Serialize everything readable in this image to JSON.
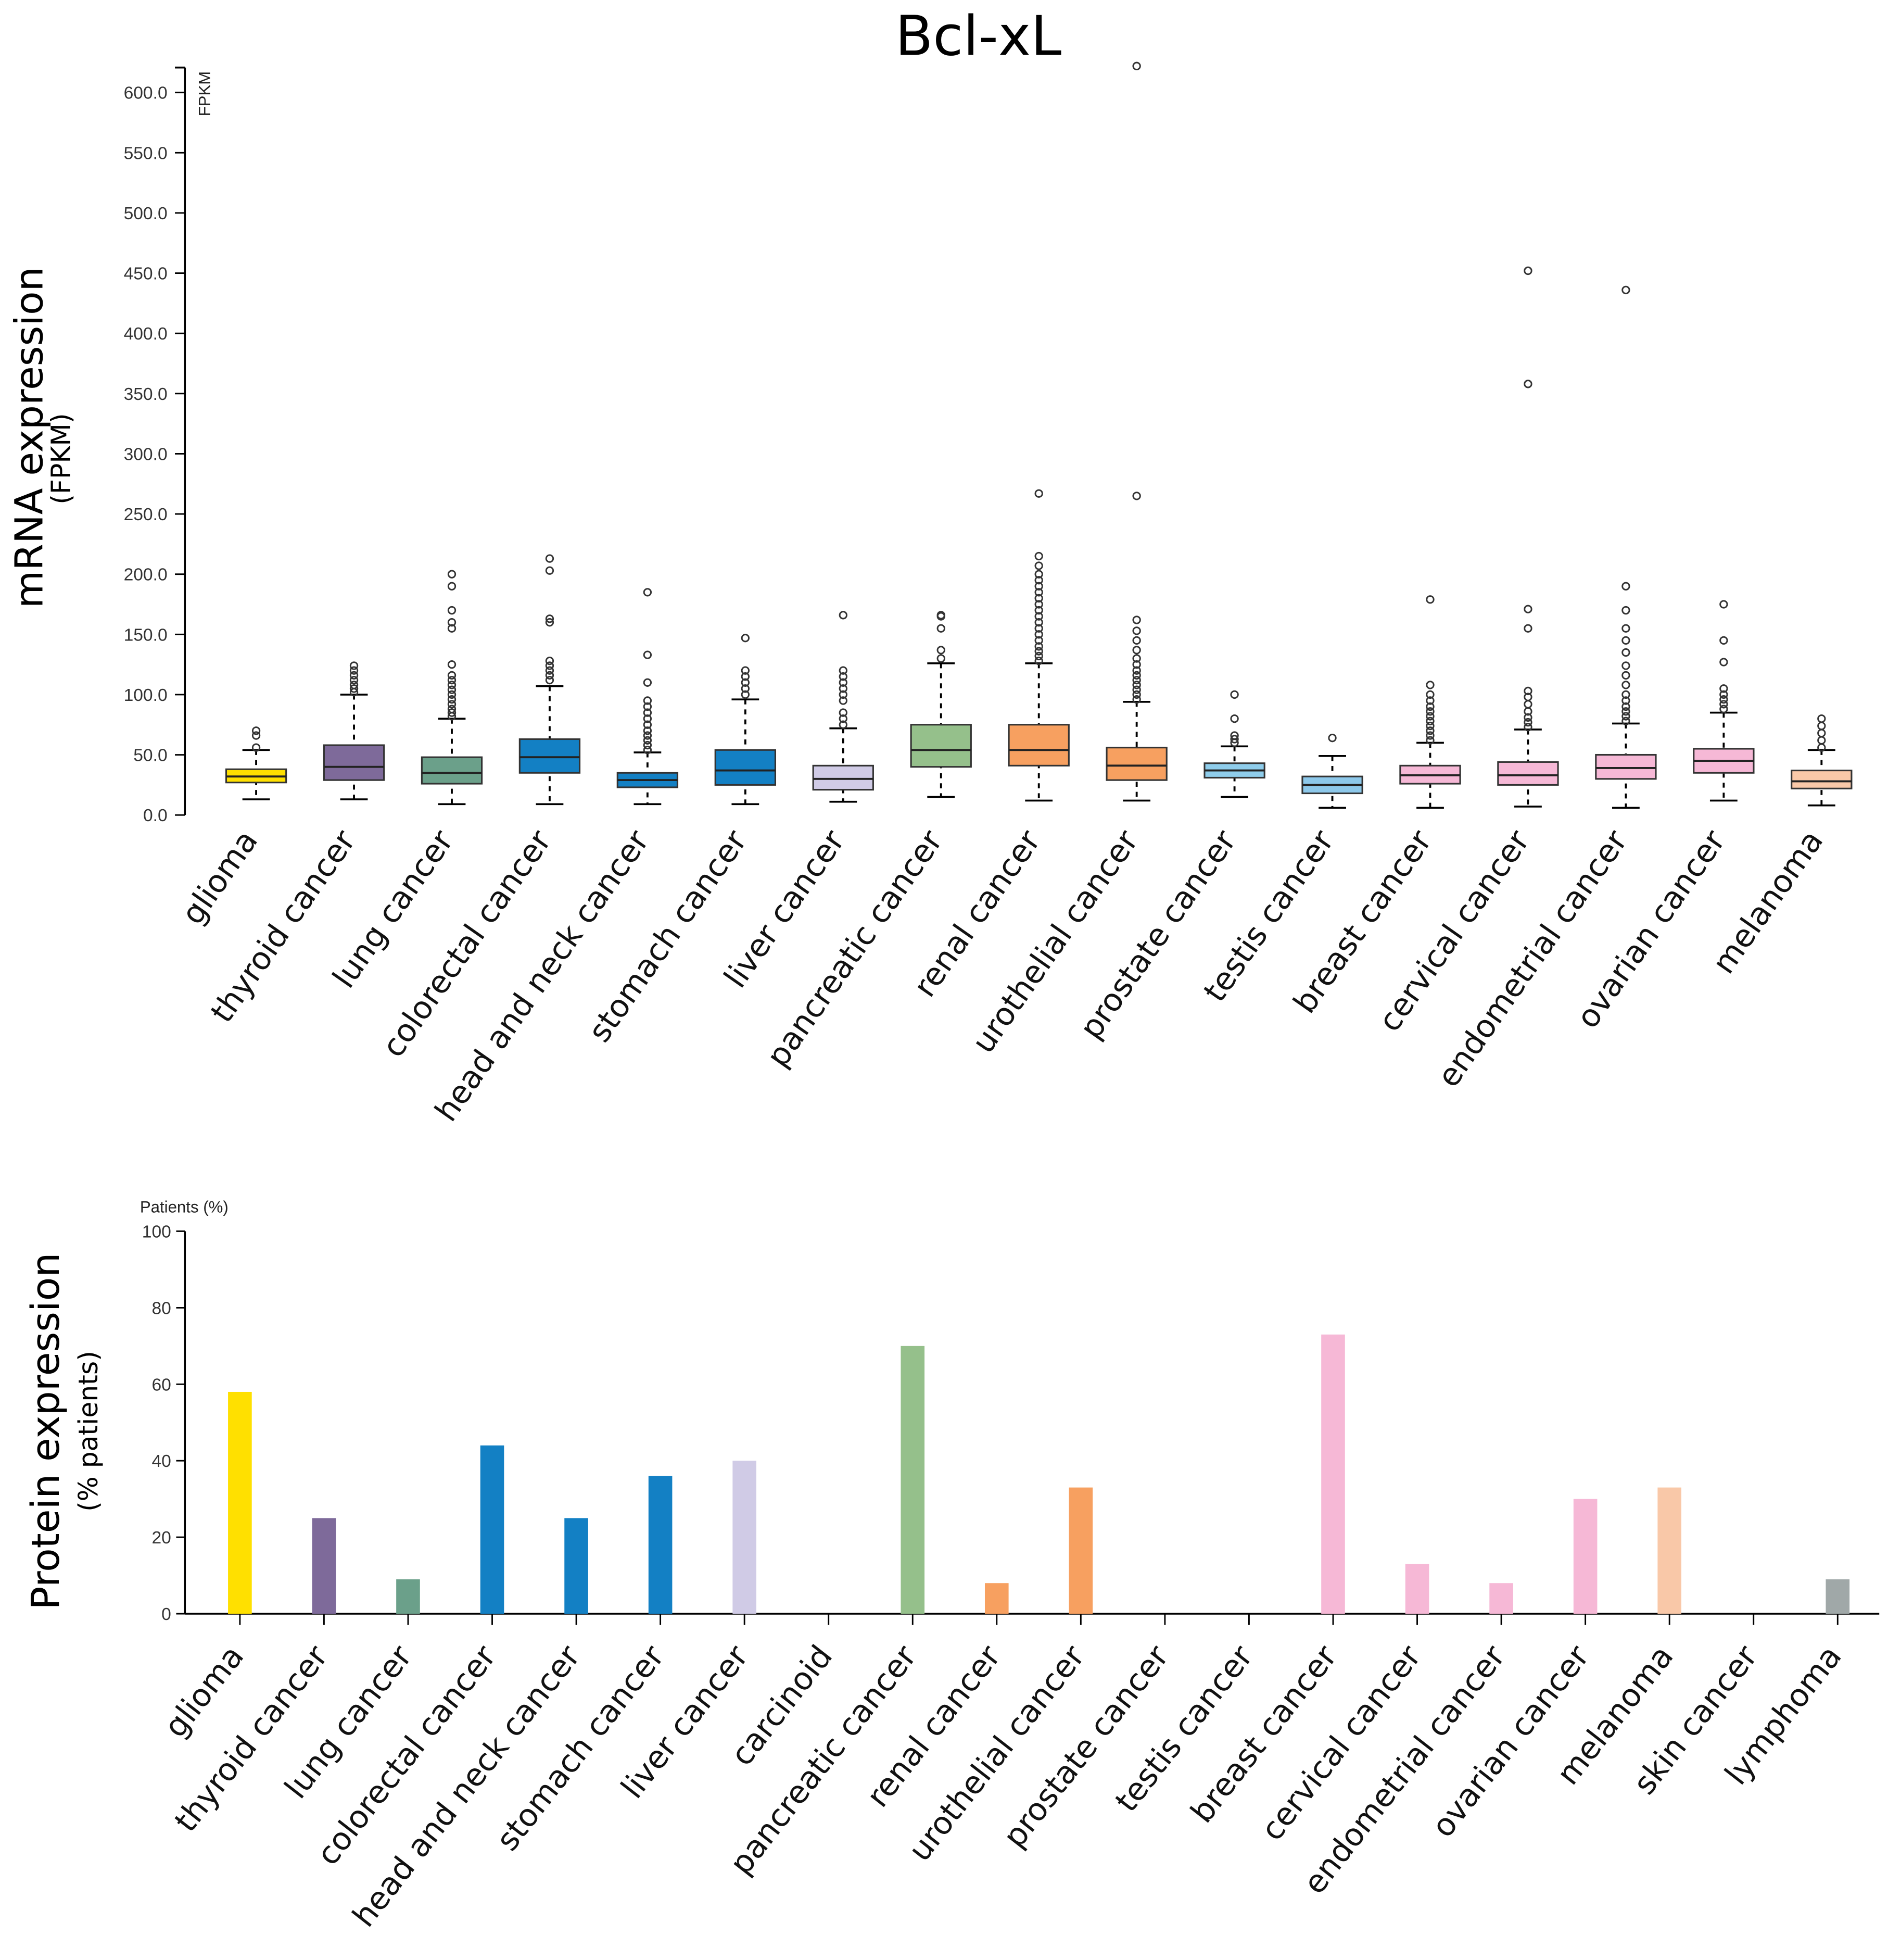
{
  "chart_data": [
    {
      "type": "box",
      "title": "Bcl-xL",
      "ylabel": "mRNA expression",
      "ylabel_sub": "(FPKM)",
      "unit_label": "FPKM",
      "ylim": [
        0,
        620
      ],
      "yticks": [
        "0.0",
        "50.0",
        "100.0",
        "150.0",
        "200.0",
        "250.0",
        "300.0",
        "350.0",
        "400.0",
        "450.0",
        "500.0",
        "550.0",
        "600.0"
      ],
      "series": [
        {
          "name": "glioma",
          "color": "#FFE000",
          "min": 13,
          "q1": 27,
          "median": 32,
          "q3": 38,
          "max": 54,
          "outliers": [
            56,
            66,
            70
          ]
        },
        {
          "name": "thyroid cancer",
          "color": "#7E6A9A",
          "min": 13,
          "q1": 29,
          "median": 40,
          "q3": 58,
          "max": 100,
          "outliers": [
            102,
            105,
            108,
            112,
            116,
            120,
            124
          ]
        },
        {
          "name": "lung cancer",
          "color": "#6BA08A",
          "min": 9,
          "q1": 26,
          "median": 35,
          "q3": 48,
          "max": 80,
          "outliers": [
            82,
            85,
            88,
            92,
            96,
            100,
            104,
            108,
            112,
            116,
            125,
            155,
            160,
            170,
            190,
            200
          ]
        },
        {
          "name": "colorectal cancer",
          "color": "#1380C4",
          "min": 9,
          "q1": 35,
          "median": 48,
          "q3": 63,
          "max": 107,
          "outliers": [
            112,
            116,
            120,
            124,
            128,
            160,
            163,
            203,
            213
          ]
        },
        {
          "name": "head and neck cancer",
          "color": "#1380C4",
          "min": 9,
          "q1": 23,
          "median": 29,
          "q3": 35,
          "max": 52,
          "outliers": [
            54,
            58,
            62,
            66,
            70,
            75,
            80,
            85,
            90,
            95,
            110,
            133,
            185
          ]
        },
        {
          "name": "stomach cancer",
          "color": "#1380C4",
          "min": 9,
          "q1": 25,
          "median": 37,
          "q3": 54,
          "max": 96,
          "outliers": [
            100,
            105,
            110,
            115,
            120,
            147
          ]
        },
        {
          "name": "liver cancer",
          "color": "#D0CBE6",
          "min": 11,
          "q1": 21,
          "median": 30,
          "q3": 41,
          "max": 72,
          "outliers": [
            75,
            80,
            85,
            95,
            100,
            105,
            110,
            115,
            120,
            166
          ]
        },
        {
          "name": "pancreatic cancer",
          "color": "#95C08B",
          "min": 15,
          "q1": 40,
          "median": 54,
          "q3": 75,
          "max": 126,
          "outliers": [
            130,
            137,
            155,
            165,
            166
          ]
        },
        {
          "name": "renal cancer",
          "color": "#F7A060",
          "min": 12,
          "q1": 41,
          "median": 54,
          "q3": 75,
          "max": 126,
          "outliers": [
            128,
            132,
            136,
            140,
            145,
            150,
            155,
            160,
            165,
            170,
            175,
            180,
            185,
            190,
            195,
            200,
            207,
            215,
            267
          ]
        },
        {
          "name": "urothelial cancer",
          "color": "#F7A060",
          "min": 12,
          "q1": 29,
          "median": 41,
          "q3": 56,
          "max": 94,
          "outliers": [
            96,
            100,
            104,
            108,
            112,
            116,
            120,
            125,
            130,
            137,
            145,
            153,
            162,
            265,
            622
          ]
        },
        {
          "name": "prostate cancer",
          "color": "#8FCDEB",
          "min": 15,
          "q1": 31,
          "median": 37,
          "q3": 43,
          "max": 57,
          "outliers": [
            60,
            63,
            66,
            80,
            100
          ]
        },
        {
          "name": "testis cancer",
          "color": "#8DC8EA",
          "min": 6,
          "q1": 18,
          "median": 25,
          "q3": 32,
          "max": 49,
          "outliers": [
            64
          ]
        },
        {
          "name": "breast cancer",
          "color": "#F6B8D6",
          "min": 6,
          "q1": 26,
          "median": 33,
          "q3": 41,
          "max": 60,
          "outliers": [
            62,
            66,
            70,
            74,
            78,
            82,
            86,
            90,
            95,
            100,
            108,
            179
          ]
        },
        {
          "name": "cervical cancer",
          "color": "#F6B8D6",
          "min": 7,
          "q1": 25,
          "median": 33,
          "q3": 44,
          "max": 71,
          "outliers": [
            73,
            77,
            81,
            86,
            92,
            98,
            103,
            155,
            171,
            358,
            452
          ]
        },
        {
          "name": "endometrial cancer",
          "color": "#F6B8D6",
          "min": 6,
          "q1": 30,
          "median": 39,
          "q3": 50,
          "max": 76,
          "outliers": [
            78,
            82,
            86,
            90,
            95,
            100,
            108,
            116,
            124,
            135,
            145,
            155,
            170,
            190,
            436
          ]
        },
        {
          "name": "ovarian cancer",
          "color": "#F6B8D6",
          "min": 12,
          "q1": 35,
          "median": 45,
          "q3": 55,
          "max": 85,
          "outliers": [
            88,
            92,
            96,
            100,
            105,
            127,
            145,
            175
          ]
        },
        {
          "name": "melanoma",
          "color": "#F9C8A8",
          "min": 8,
          "q1": 22,
          "median": 28,
          "q3": 37,
          "max": 54,
          "outliers": [
            56,
            62,
            68,
            74,
            80
          ]
        }
      ]
    },
    {
      "type": "bar",
      "ylabel": "Protein expression",
      "ylabel_sub": "(% patients)",
      "unit_label": "Patients (%)",
      "ylim": [
        0,
        100
      ],
      "yticks": [
        "0",
        "20",
        "40",
        "60",
        "80",
        "100"
      ],
      "categories": [
        "glioma",
        "thyroid cancer",
        "lung cancer",
        "colorectal cancer",
        "head and neck cancer",
        "stomach cancer",
        "liver cancer",
        "carcinoid",
        "pancreatic cancer",
        "renal cancer",
        "urothelial cancer",
        "prostate cancer",
        "testis cancer",
        "breast cancer",
        "cervical cancer",
        "endometrial cancer",
        "ovarian cancer",
        "melanoma",
        "skin cancer",
        "lymphoma"
      ],
      "values": [
        58,
        25,
        9,
        44,
        25,
        36,
        40,
        0,
        70,
        8,
        33,
        0,
        0,
        73,
        13,
        8,
        30,
        33,
        0,
        9
      ],
      "colors": [
        "#FFE000",
        "#7E6A9A",
        "#6BA08A",
        "#1380C4",
        "#1380C4",
        "#1380C4",
        "#D0CBE6",
        "#888888",
        "#95C08B",
        "#F7A060",
        "#F7A060",
        "#8FCDEB",
        "#8DC8EA",
        "#F6B8D6",
        "#F6B8D6",
        "#F6B8D6",
        "#F6B8D6",
        "#F9C8A8",
        "#F9C8A8",
        "#A0A8A8"
      ]
    }
  ]
}
